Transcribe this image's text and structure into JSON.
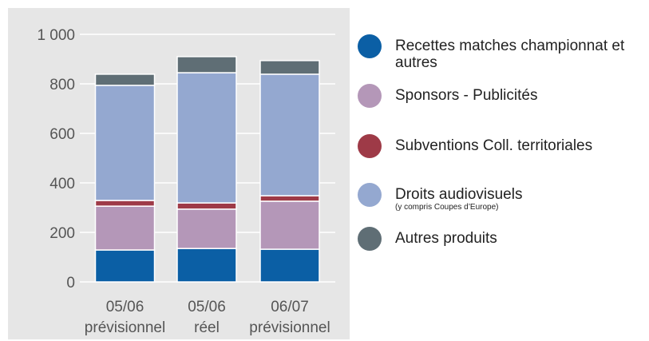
{
  "chart_data": {
    "type": "stacked-bar",
    "categories": [
      [
        "05/06",
        "prévisionnel"
      ],
      [
        "05/06",
        "réel"
      ],
      [
        "06/07",
        "prévisionnel"
      ]
    ],
    "series": [
      {
        "name": "Recettes matches championnat et autres",
        "color": "#0b5fa5",
        "values": [
          129,
          135,
          132
        ]
      },
      {
        "name": "Sponsors - Publicités",
        "color": "#b497b8",
        "values": [
          177,
          159,
          194
        ]
      },
      {
        "name": "Subventions Coll. territoriales",
        "color": "#9e3a47",
        "values": [
          23,
          25,
          22
        ]
      },
      {
        "name": "Droits audiovisuels",
        "note": "(y compris Coupes d’Europe)",
        "color": "#94a8d0",
        "values": [
          465,
          526,
          491
        ]
      },
      {
        "name": "Autres produits",
        "color": "#5f6e75",
        "values": [
          45,
          65,
          55
        ]
      }
    ],
    "ylim": [
      0,
      1000
    ],
    "yticks": [
      0,
      200,
      400,
      600,
      800,
      {
        "value": 1000,
        "label": "1 000"
      }
    ],
    "grid": true
  }
}
